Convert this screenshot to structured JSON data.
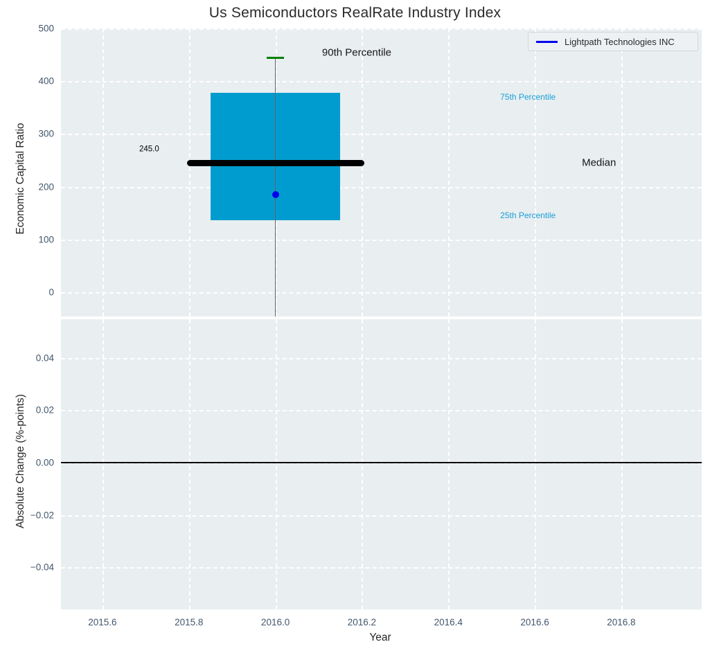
{
  "title": "Us Semiconductors RealRate Industry Index",
  "legend": {
    "label": "Lightpath Technologies INC"
  },
  "colors": {
    "plot_bg": "#e9eef0",
    "grid": "#ffffff",
    "tick_label": "#42566b",
    "axis_title": "#262626",
    "box_fill": "#019ccf",
    "median_line": "#000000",
    "p90_cap": "#008000",
    "whisker": "#5f6468",
    "marker": "#0000ee",
    "legend_line": "#0000f0",
    "percentile_label": "#18a0d8",
    "zero_line": "#000000"
  },
  "chart_data": {
    "type": "box",
    "title": "Us Semiconductors RealRate Industry Index",
    "xlabel": "Year",
    "x_range": [
      2015.504,
      2016.986
    ],
    "x_ticks": [
      {
        "v": 2015.6,
        "label": "2015.6"
      },
      {
        "v": 2015.8,
        "label": "2015.8"
      },
      {
        "v": 2016.0,
        "label": "2016.0"
      },
      {
        "v": 2016.2,
        "label": "2016.2"
      },
      {
        "v": 2016.4,
        "label": "2016.4"
      },
      {
        "v": 2016.6,
        "label": "2016.6"
      },
      {
        "v": 2016.8,
        "label": "2016.8"
      }
    ],
    "panels": [
      {
        "name": "economic-capital-ratio",
        "ylabel": "Economic Capital Ratio",
        "y_range": [
          -46,
          500
        ],
        "y_ticks": [
          {
            "v": 500,
            "label": "500"
          },
          {
            "v": 400,
            "label": "400"
          },
          {
            "v": 300,
            "label": "300"
          },
          {
            "v": 200,
            "label": "200"
          },
          {
            "v": 100,
            "label": "100"
          },
          {
            "v": 0,
            "label": "0"
          }
        ],
        "series": [
          {
            "name": "industry-distribution-box",
            "type": "box",
            "x": 2016.0,
            "median": 245.0,
            "q1": 136,
            "q3": 378,
            "p90": 444,
            "whisker_extends_below_axis": true,
            "box_half_width": 0.15,
            "median_half_width": 0.205,
            "cap_half_width": 0.02
          },
          {
            "name": "Lightpath Technologies INC",
            "type": "scatter",
            "x": 2016.0,
            "y": 185
          }
        ],
        "annotations": [
          {
            "text": "245.0",
            "x": 2015.685,
            "y": 270,
            "size": 11.5,
            "color": "#000000",
            "align": "left"
          },
          {
            "text": "90th Percentile",
            "x": 2016.188,
            "y": 454,
            "size": 15,
            "color": "#161616",
            "align": "center"
          },
          {
            "text": "75th Percentile",
            "x": 2016.52,
            "y": 370,
            "size": 12,
            "color": "#18a0d8",
            "align": "left"
          },
          {
            "text": "Median",
            "x": 2016.709,
            "y": 245,
            "size": 15,
            "color": "#161616",
            "align": "left"
          },
          {
            "text": "25th Percentile",
            "x": 2016.52,
            "y": 146,
            "size": 12,
            "color": "#18a0d8",
            "align": "left"
          }
        ]
      },
      {
        "name": "absolute-change",
        "ylabel": "Absolute Change (%-points)",
        "y_range": [
          -0.056,
          0.0547
        ],
        "y_ticks": [
          {
            "v": 0.04,
            "label": "0.04"
          },
          {
            "v": 0.02,
            "label": "0.02"
          },
          {
            "v": 0.0,
            "label": "0.00"
          },
          {
            "v": -0.02,
            "label": "−0.02"
          },
          {
            "v": -0.04,
            "label": "−0.04"
          }
        ],
        "zero_line": 0.0,
        "series": []
      }
    ]
  }
}
